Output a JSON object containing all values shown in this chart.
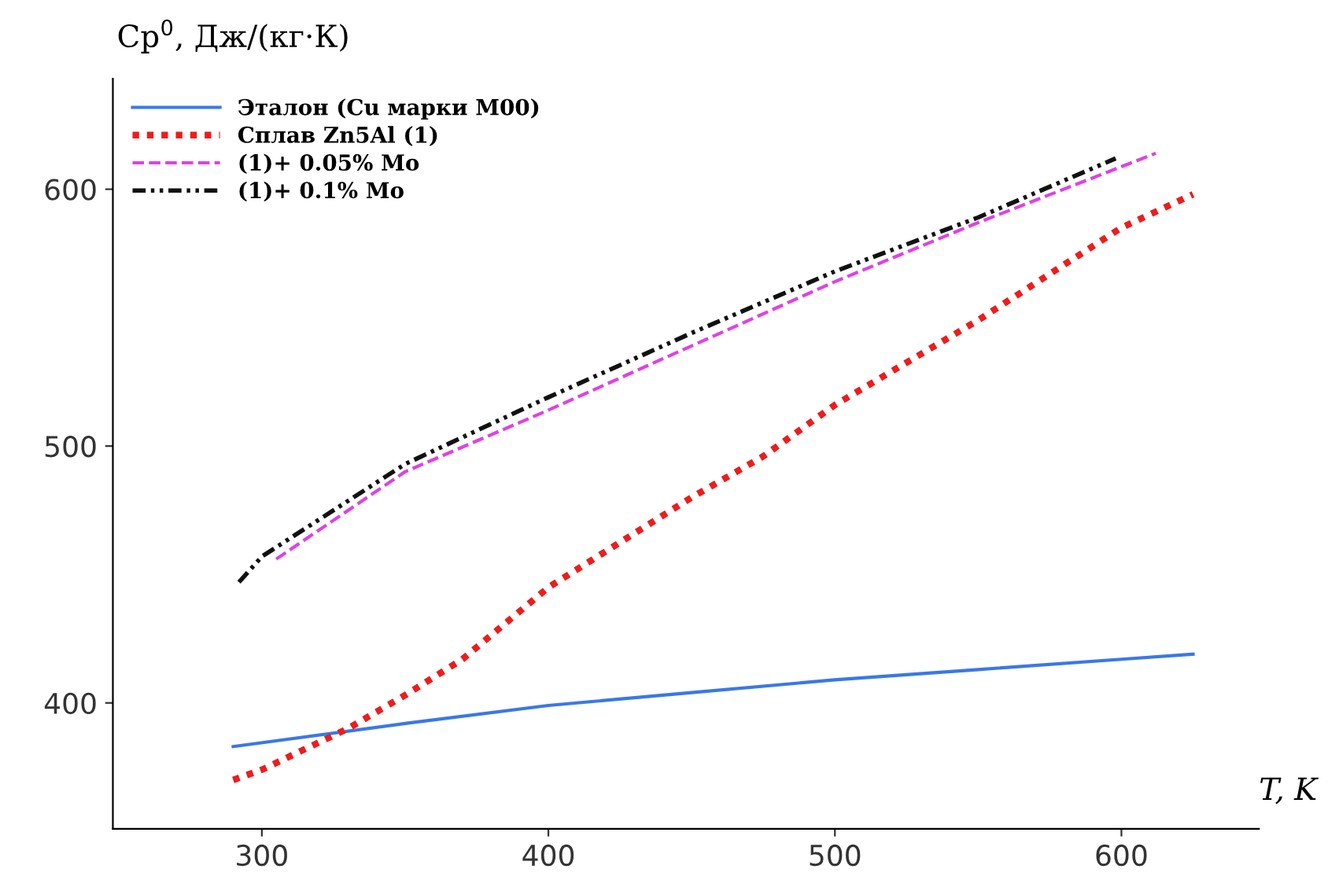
{
  "chart_data": {
    "type": "line",
    "ylabel": "Cp$^{0}$, Дж/(кг·К)",
    "xlabel": "T, K",
    "xlim": [
      248,
      648
    ],
    "ylim": [
      351,
      643
    ],
    "xticks": [
      300,
      400,
      500,
      600
    ],
    "yticks": [
      400,
      500,
      600
    ],
    "grid": false,
    "legend": "top left",
    "series": [
      {
        "name": "Эталон (Cu марки M00)",
        "color": "#3a78e6",
        "line_style": "solid",
        "x": [
          290,
          350,
          400,
          450,
          500,
          550,
          600,
          625
        ],
        "values": [
          383,
          392,
          399,
          404,
          409,
          413,
          417,
          419
        ]
      },
      {
        "name": "Сплав Zn5Al (1)",
        "color": "#ee1c1c",
        "line_style": "dotted",
        "x": [
          290,
          300,
          330,
          350,
          370,
          400,
          450,
          475,
          500,
          550,
          600,
          625
        ],
        "values": [
          370,
          374,
          390,
          403,
          417,
          445,
          480,
          496,
          516,
          549,
          585,
          598
        ]
      },
      {
        "name": "(1)+ 0.05% Mo",
        "color": "#e040e8",
        "line_style": "dashed",
        "x": [
          305,
          350,
          400,
          450,
          500,
          550,
          612
        ],
        "values": [
          456,
          490,
          514,
          539,
          564,
          587,
          614
        ]
      },
      {
        "name": "(1)+ 0.1% Mo",
        "color": "#111111",
        "line_style": "dashdot",
        "x": [
          292,
          300,
          350,
          400,
          450,
          500,
          550,
          598
        ],
        "values": [
          447,
          457,
          493,
          519,
          544,
          568,
          589,
          612
        ]
      }
    ]
  }
}
